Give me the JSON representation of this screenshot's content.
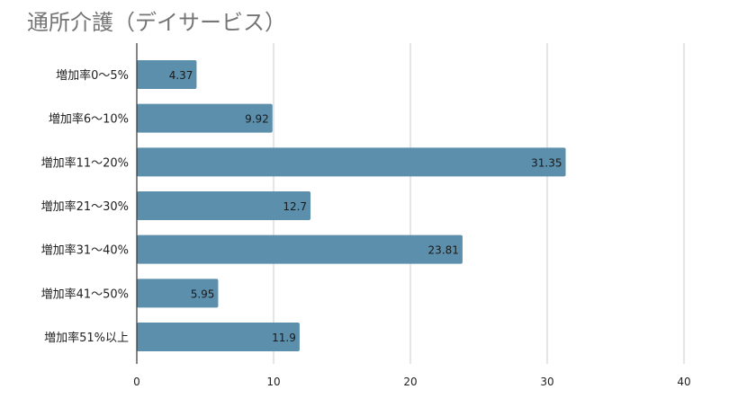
{
  "chart_data": {
    "type": "bar",
    "orientation": "horizontal",
    "title": "通所介護（デイサービス）",
    "categories": [
      "増加率0〜5%",
      "増加率6〜10%",
      "増加率11〜20%",
      "増加率21〜30%",
      "増加率31〜40%",
      "増加率41〜50%",
      "増加率51%以上"
    ],
    "values": [
      4.37,
      9.92,
      31.35,
      12.7,
      23.81,
      5.95,
      11.9
    ],
    "value_labels": [
      "4.37",
      "9.92",
      "31.35",
      "12.7",
      "23.81",
      "5.95",
      "11.9"
    ],
    "xlim": [
      0,
      40
    ],
    "xticks": [
      0,
      10,
      20,
      30,
      40
    ],
    "xlabel": "",
    "ylabel": "",
    "grid": true,
    "legend": "none",
    "colors": {
      "bar": "#5b8fac",
      "grid": "#cccccc",
      "axis": "#333333",
      "title": "#757575"
    }
  }
}
